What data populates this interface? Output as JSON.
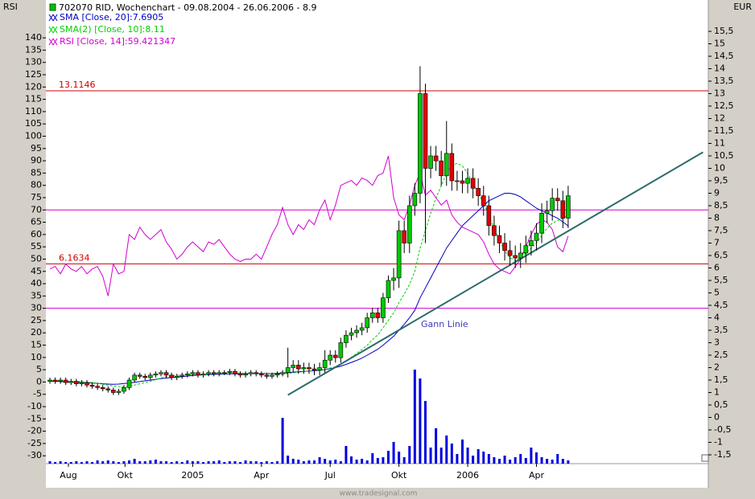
{
  "chart_data": {
    "type": "candlestick",
    "title": "702070 RID, Wochenchart - 09.08.2004 - 26.06.2006 - 8.9",
    "y_label": "RSI",
    "y2_label": "EUR",
    "watermark": "www.tradesignal.com",
    "ylim": [
      -33.2,
      155.4
    ],
    "yticks": [
      140,
      135,
      130,
      125,
      120,
      115,
      110,
      105,
      100,
      95,
      90,
      85,
      80,
      75,
      70,
      65,
      60,
      55,
      50,
      45,
      40,
      35,
      30,
      25,
      20,
      15,
      10,
      5,
      0,
      -5,
      -10,
      -15,
      -20,
      -25,
      -30
    ],
    "y2lim": [
      -1.855,
      16.758
    ],
    "y2ticks": [
      {
        "value": 15.5,
        "label": "15,5"
      },
      15,
      {
        "value": 14.5,
        "label": "14,5"
      },
      14,
      {
        "value": 13.5,
        "label": "13,5"
      },
      13,
      {
        "value": 12.5,
        "label": "12,5"
      },
      12,
      {
        "value": 11.5,
        "label": "11,5"
      },
      11,
      {
        "value": 10.5,
        "label": "10,5"
      },
      10,
      {
        "value": 9.5,
        "label": "9,5"
      },
      9,
      {
        "value": 8.5,
        "label": "8,5"
      },
      8,
      {
        "value": 7.5,
        "label": "7,5"
      },
      7,
      {
        "value": 6.5,
        "label": "6,5"
      },
      6,
      {
        "value": 5.5,
        "label": "5,5"
      },
      5,
      {
        "value": 4.5,
        "label": "4,5"
      },
      4,
      {
        "value": 3.5,
        "label": "3,5"
      },
      3,
      {
        "value": 2.5,
        "label": "2,5"
      },
      2,
      {
        "value": 1.5,
        "label": "1,5"
      },
      1,
      {
        "value": 0.5,
        "label": "0,5"
      },
      0,
      {
        "value": -0.5,
        "label": "-0,5"
      },
      -1,
      {
        "value": -1.5,
        "label": "-1,5"
      }
    ],
    "xlim": [
      -0.76,
      124.5
    ],
    "xticks": [
      {
        "value": 3.5,
        "label": "Aug"
      },
      {
        "value": 14.2,
        "label": "Okt"
      },
      {
        "value": 27,
        "label": "2005"
      },
      {
        "value": 40,
        "label": "Apr"
      },
      {
        "value": 53,
        "label": "Jul"
      },
      {
        "value": 66,
        "label": "Okt"
      },
      {
        "value": 79,
        "label": "2006"
      },
      {
        "value": 92,
        "label": "Apr"
      }
    ],
    "up_color": "#00c800",
    "down_color": "#e00000",
    "open": [
      1.45,
      1.5,
      1.45,
      1.5,
      1.4,
      1.45,
      1.35,
      1.4,
      1.3,
      1.25,
      1.2,
      1.15,
      1.1,
      1.0,
      1.05,
      1.2,
      1.5,
      1.7,
      1.65,
      1.6,
      1.7,
      1.75,
      1.8,
      1.7,
      1.6,
      1.65,
      1.7,
      1.75,
      1.8,
      1.7,
      1.75,
      1.8,
      1.75,
      1.8,
      1.8,
      1.85,
      1.75,
      1.7,
      1.75,
      1.8,
      1.75,
      1.7,
      1.65,
      1.7,
      1.75,
      1.8,
      2.0,
      2.1,
      1.95,
      2.0,
      1.95,
      1.9,
      2.0,
      2.3,
      2.5,
      2.4,
      3.0,
      3.3,
      3.4,
      3.5,
      3.6,
      4.0,
      4.2,
      4.0,
      4.8,
      5.5,
      5.6,
      7.5,
      7.0,
      8.5,
      9.0,
      13.0,
      10.0,
      10.5,
      10.3,
      9.7,
      10.6,
      9.5,
      9.5,
      9.4,
      9.6,
      9.2,
      8.9,
      8.5,
      7.7,
      7.3,
      7.0,
      6.7,
      6.5,
      6.4,
      6.6,
      6.9,
      7.1,
      7.4,
      8.2,
      8.3,
      8.8,
      8.7,
      8.0
    ],
    "high": [
      1.6,
      1.6,
      1.6,
      1.6,
      1.55,
      1.55,
      1.5,
      1.5,
      1.4,
      1.35,
      1.3,
      1.25,
      1.2,
      1.15,
      1.3,
      1.6,
      1.8,
      1.8,
      1.75,
      1.8,
      1.85,
      1.9,
      1.9,
      1.8,
      1.75,
      1.8,
      1.85,
      1.9,
      1.9,
      1.85,
      1.9,
      1.9,
      1.9,
      1.9,
      1.95,
      1.95,
      1.85,
      1.85,
      1.9,
      1.9,
      1.85,
      1.8,
      1.8,
      1.85,
      1.9,
      2.8,
      2.3,
      2.3,
      2.2,
      2.2,
      2.15,
      2.2,
      2.7,
      2.7,
      2.7,
      3.2,
      3.5,
      3.6,
      3.7,
      3.8,
      4.2,
      4.4,
      4.4,
      5.0,
      5.7,
      6.0,
      7.9,
      7.9,
      8.9,
      9.4,
      14.1,
      13.4,
      10.9,
      10.9,
      10.7,
      11.9,
      11.0,
      9.9,
      9.9,
      10.0,
      10.0,
      9.6,
      9.3,
      8.9,
      8.1,
      7.7,
      7.4,
      7.1,
      6.9,
      7.0,
      7.3,
      7.5,
      7.8,
      8.6,
      8.7,
      9.2,
      9.2,
      9.1,
      9.3
    ],
    "low": [
      1.35,
      1.35,
      1.35,
      1.3,
      1.3,
      1.25,
      1.25,
      1.2,
      1.15,
      1.1,
      1.05,
      1.0,
      0.9,
      0.9,
      0.95,
      1.1,
      1.4,
      1.55,
      1.5,
      1.5,
      1.6,
      1.65,
      1.6,
      1.5,
      1.5,
      1.55,
      1.6,
      1.65,
      1.6,
      1.6,
      1.65,
      1.65,
      1.65,
      1.7,
      1.7,
      1.65,
      1.6,
      1.6,
      1.65,
      1.65,
      1.6,
      1.55,
      1.55,
      1.6,
      1.65,
      1.6,
      1.8,
      1.75,
      1.75,
      1.75,
      1.7,
      1.7,
      1.8,
      2.1,
      2.2,
      2.2,
      2.8,
      3.1,
      3.2,
      3.3,
      3.4,
      3.8,
      3.8,
      3.8,
      4.6,
      5.1,
      5.2,
      6.6,
      6.6,
      8.1,
      8.6,
      7.0,
      9.6,
      9.9,
      9.3,
      9.3,
      9.1,
      9.1,
      9.0,
      9.0,
      8.8,
      8.5,
      8.1,
      7.3,
      6.9,
      6.6,
      6.3,
      6.1,
      6.0,
      6.0,
      6.2,
      6.5,
      6.7,
      7.0,
      7.8,
      7.9,
      8.3,
      7.6,
      7.6
    ],
    "close": [
      1.5,
      1.45,
      1.5,
      1.4,
      1.45,
      1.35,
      1.4,
      1.3,
      1.25,
      1.2,
      1.15,
      1.1,
      1.0,
      1.05,
      1.2,
      1.5,
      1.7,
      1.65,
      1.6,
      1.7,
      1.75,
      1.8,
      1.7,
      1.6,
      1.65,
      1.7,
      1.75,
      1.8,
      1.7,
      1.75,
      1.8,
      1.75,
      1.8,
      1.8,
      1.85,
      1.75,
      1.7,
      1.75,
      1.8,
      1.75,
      1.7,
      1.65,
      1.7,
      1.75,
      1.8,
      2.0,
      2.1,
      1.95,
      2.0,
      1.95,
      1.9,
      2.0,
      2.3,
      2.5,
      2.4,
      3.0,
      3.3,
      3.4,
      3.5,
      3.6,
      4.0,
      4.2,
      4.0,
      4.8,
      5.5,
      5.6,
      7.5,
      7.0,
      8.5,
      9.0,
      13.0,
      10.0,
      10.5,
      10.3,
      9.7,
      10.6,
      9.5,
      9.5,
      9.4,
      9.6,
      9.2,
      8.9,
      8.5,
      7.7,
      7.3,
      7.0,
      6.7,
      6.5,
      6.4,
      6.6,
      6.9,
      7.1,
      7.4,
      8.2,
      8.3,
      8.8,
      8.7,
      8.0,
      8.9
    ],
    "volume": {
      "color": "#0000e0",
      "values": [
        3,
        2,
        3,
        2,
        2,
        3,
        2,
        3,
        2,
        4,
        3,
        4,
        3,
        2,
        3,
        4,
        6,
        3,
        3,
        4,
        5,
        3,
        3,
        2,
        3,
        2,
        4,
        3,
        3,
        2,
        3,
        3,
        4,
        2,
        3,
        3,
        2,
        4,
        3,
        3,
        2,
        3,
        2,
        3,
        57,
        10,
        6,
        5,
        3,
        4,
        4,
        8,
        6,
        4,
        5,
        3,
        22,
        9,
        5,
        6,
        4,
        13,
        7,
        8,
        16,
        27,
        15,
        8,
        22,
        117,
        106,
        78,
        20,
        44,
        20,
        35,
        25,
        12,
        30,
        20,
        10,
        18,
        15,
        12,
        8,
        6,
        10,
        5,
        8,
        12,
        7,
        20,
        14,
        8,
        6,
        5,
        12,
        6,
        4
      ]
    },
    "series": [
      {
        "name": "SMA [Close, 20]:7.6905",
        "color": "#0000c0",
        "axis": "y2",
        "dashed": false,
        "values": [
          1.45,
          1.45,
          1.44,
          1.43,
          1.42,
          1.41,
          1.4,
          1.39,
          1.38,
          1.37,
          1.35,
          1.34,
          1.33,
          1.34,
          1.36,
          1.38,
          1.41,
          1.44,
          1.47,
          1.5,
          1.53,
          1.56,
          1.58,
          1.6,
          1.62,
          1.64,
          1.66,
          1.68,
          1.7,
          1.71,
          1.72,
          1.73,
          1.74,
          1.74,
          1.75,
          1.75,
          1.75,
          1.76,
          1.76,
          1.76,
          1.76,
          1.76,
          1.76,
          1.77,
          1.78,
          1.8,
          1.82,
          1.83,
          1.85,
          1.86,
          1.87,
          1.89,
          1.92,
          1.96,
          2.0,
          2.06,
          2.13,
          2.21,
          2.29,
          2.38,
          2.5,
          2.62,
          2.74,
          2.9,
          3.08,
          3.26,
          3.5,
          3.74,
          4.0,
          4.3,
          4.8,
          5.2,
          5.6,
          6.0,
          6.4,
          6.8,
          7.1,
          7.4,
          7.7,
          7.9,
          8.1,
          8.3,
          8.5,
          8.7,
          8.8,
          8.9,
          9.0,
          9.0,
          8.95,
          8.85,
          8.7,
          8.55,
          8.4,
          8.3,
          8.2,
          8.1,
          8.0,
          7.85,
          7.6905
        ]
      },
      {
        "name": "SMA(2) [Close, 10]:8.11",
        "color": "#00d000",
        "axis": "y2",
        "dashed": true,
        "values": [
          1.47,
          1.47,
          1.46,
          1.45,
          1.45,
          1.44,
          1.43,
          1.42,
          1.4,
          1.37,
          1.33,
          1.3,
          1.26,
          1.24,
          1.23,
          1.25,
          1.3,
          1.35,
          1.4,
          1.45,
          1.52,
          1.58,
          1.64,
          1.67,
          1.69,
          1.7,
          1.71,
          1.72,
          1.72,
          1.72,
          1.73,
          1.74,
          1.75,
          1.76,
          1.77,
          1.78,
          1.78,
          1.77,
          1.77,
          1.77,
          1.77,
          1.76,
          1.75,
          1.74,
          1.74,
          1.76,
          1.79,
          1.81,
          1.84,
          1.86,
          1.88,
          1.9,
          1.93,
          1.98,
          2.04,
          2.14,
          2.27,
          2.42,
          2.57,
          2.73,
          2.9,
          3.12,
          3.32,
          3.6,
          3.9,
          4.2,
          4.6,
          4.95,
          5.35,
          5.85,
          6.8,
          7.5,
          8.2,
          8.8,
          9.3,
          9.8,
          10.1,
          10.2,
          10.1,
          9.8,
          9.4,
          9.0,
          8.6,
          8.1,
          7.6,
          7.1,
          6.7,
          6.4,
          6.3,
          6.4,
          6.6,
          6.8,
          7.0,
          7.3,
          7.6,
          7.8,
          7.9,
          8.0,
          8.11
        ]
      },
      {
        "name": "RSI [Close, 14]:59.421347",
        "color": "#d000d0",
        "axis": "y",
        "dashed": false,
        "values": [
          46,
          47,
          44,
          48,
          46,
          45,
          47,
          44,
          46,
          47,
          43,
          35,
          48,
          44,
          45,
          60,
          58,
          63,
          60,
          58,
          60,
          62,
          57,
          54,
          50,
          52,
          55,
          57,
          55,
          53,
          57,
          56,
          58,
          55,
          52,
          50,
          49,
          50,
          50,
          52,
          50,
          55,
          60,
          64,
          71,
          64,
          60,
          64,
          62,
          66,
          64,
          70,
          74,
          66,
          72,
          80,
          81,
          82,
          80,
          83,
          82,
          80,
          84,
          85,
          92,
          75,
          68,
          66,
          72,
          80,
          85,
          76,
          78,
          75,
          72,
          74,
          68,
          65,
          63,
          62,
          61,
          60,
          57,
          52,
          48,
          46,
          45,
          44,
          47,
          50,
          55,
          60,
          64,
          66,
          65,
          62,
          55,
          53,
          59.421347
        ]
      }
    ],
    "price_levels": [
      13.1146,
      6.1634
    ],
    "price_level_color": "#d00000",
    "rsi_levels": [
      70,
      30
    ],
    "rsi_level_color": "#d000d0",
    "trendline": {
      "label": "Gann Linie",
      "color": "#2f6b6b",
      "label_color": "#3c3cc0",
      "x": [
        45,
        123.5
      ],
      "y": [
        0.9,
        10.65
      ]
    }
  }
}
